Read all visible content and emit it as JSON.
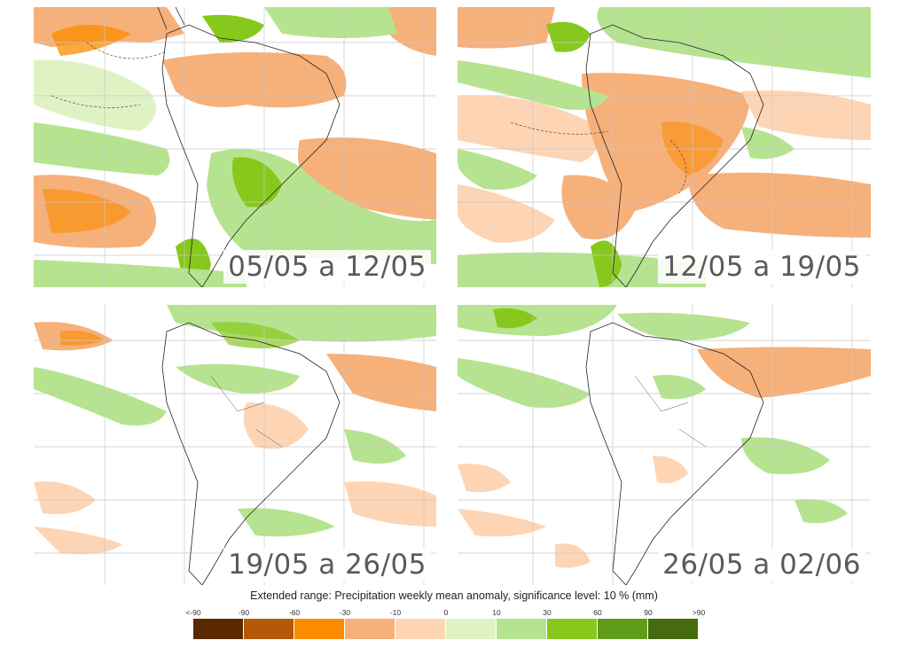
{
  "panels": [
    {
      "label": "05/05 a 12/05"
    },
    {
      "label": "12/05 a 19/05"
    },
    {
      "label": "19/05 a 26/05"
    },
    {
      "label": "26/05 a 02/06"
    }
  ],
  "caption": "Extended range: Precipitation weekly mean anomaly, significance level: 10 % (mm)",
  "colorbar": {
    "tick_labels": [
      "<-90",
      "-90",
      "-60",
      "-30",
      "-10",
      "0",
      "10",
      "30",
      "60",
      "90",
      ">90"
    ],
    "colors": [
      "#5a2800",
      "#b35806",
      "#fb8c00",
      "#f6b07a",
      "#fdd5b5",
      "#dff2c4",
      "#b6e38f",
      "#86c91c",
      "#5f9c18",
      "#466b0e"
    ]
  },
  "colors": {
    "land_outline": "#222222",
    "grid": "#c8c8c8"
  }
}
